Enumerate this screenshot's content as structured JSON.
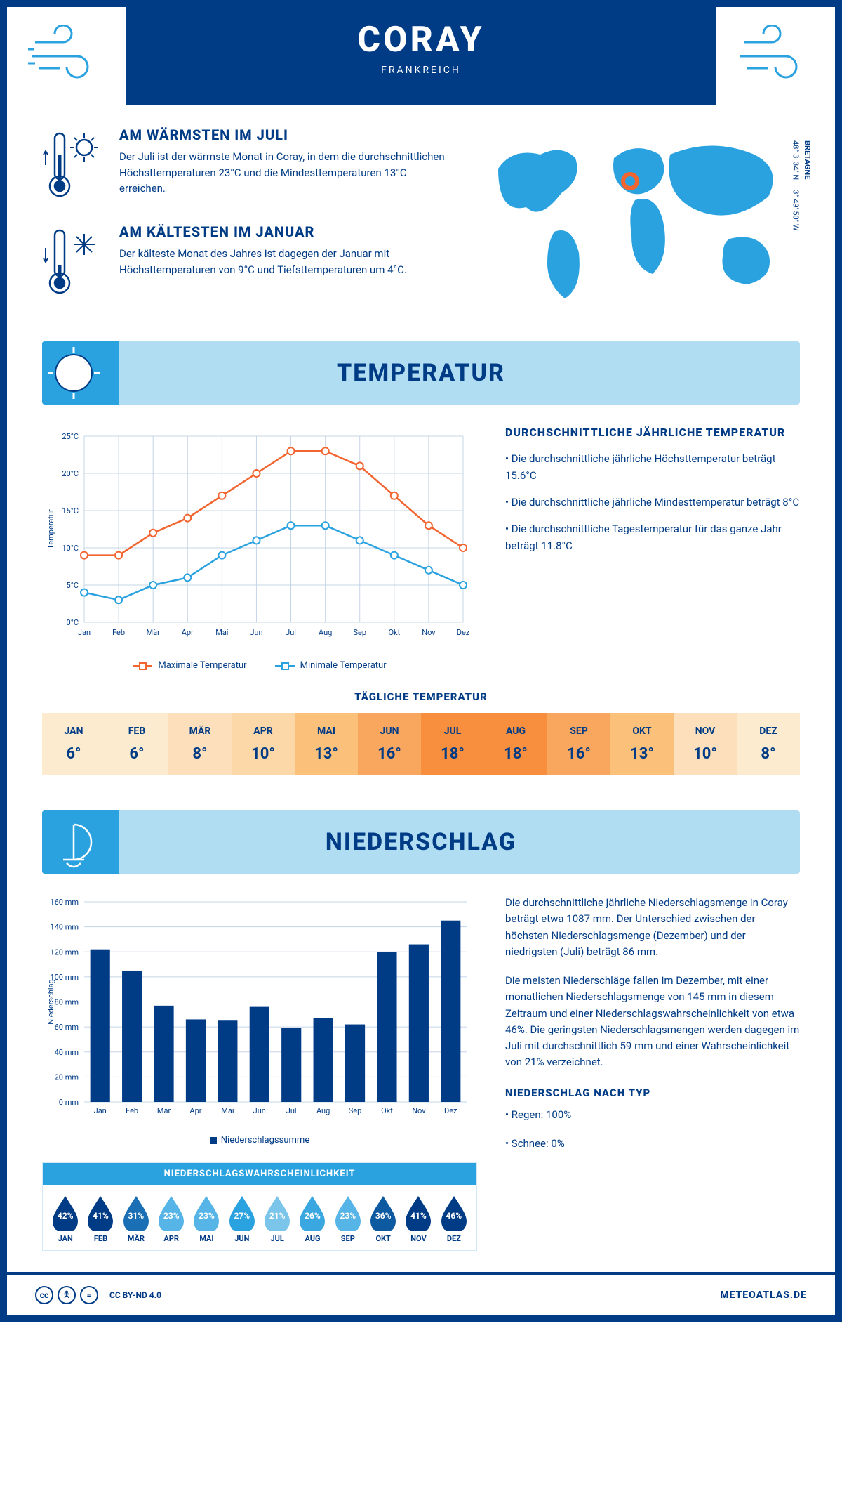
{
  "header": {
    "title": "CORAY",
    "subtitle": "FRANKREICH"
  },
  "map": {
    "region": "BRETAGNE",
    "coords": "48° 3' 34'' N — 3° 49' 50'' W",
    "marker_color": "#f26430",
    "land_color": "#2aa2e0"
  },
  "intro": {
    "warm": {
      "heading": "AM WÄRMSTEN IM JULI",
      "text": "Der Juli ist der wärmste Monat in Coray, in dem die durchschnittlichen Höchsttemperaturen 23°C und die Mindesttemperaturen 13°C erreichen."
    },
    "cold": {
      "heading": "AM KÄLTESTEN IM JANUAR",
      "text": "Der kälteste Monat des Jahres ist dagegen der Januar mit Höchsttemperaturen von 9°C und Tiefsttemperaturen um 4°C."
    }
  },
  "temp_section": {
    "title": "TEMPERATUR",
    "desc_heading": "DURCHSCHNITTLICHE JÄHRLICHE TEMPERATUR",
    "desc_1": "• Die durchschnittliche jährliche Höchsttemperatur beträgt 15.6°C",
    "desc_2": "• Die durchschnittliche jährliche Mindesttemperatur beträgt 8°C",
    "desc_3": "• Die durchschnittliche Tagestemperatur für das ganze Jahr beträgt 11.8°C",
    "legend_max": "Maximale Temperatur",
    "legend_min": "Minimale Temperatur",
    "chart": {
      "months": [
        "Jan",
        "Feb",
        "Mär",
        "Apr",
        "Mai",
        "Jun",
        "Jul",
        "Aug",
        "Sep",
        "Okt",
        "Nov",
        "Dez"
      ],
      "max_values": [
        9,
        9,
        12,
        14,
        17,
        20,
        23,
        23,
        21,
        17,
        13,
        10
      ],
      "min_values": [
        4,
        3,
        5,
        6,
        9,
        11,
        13,
        13,
        11,
        9,
        7,
        5
      ],
      "max_color": "#f26430",
      "min_color": "#2aa2e0",
      "ylim": [
        0,
        25
      ],
      "ytick_step": 5,
      "ylabel": "Temperatur",
      "grid_color": "#c5d4e6",
      "line_width": 2.5,
      "marker_size": 5
    },
    "daily_title": "TÄGLICHE TEMPERATUR",
    "daily": {
      "months": [
        "JAN",
        "FEB",
        "MÄR",
        "APR",
        "MAI",
        "JUN",
        "JUL",
        "AUG",
        "SEP",
        "OKT",
        "NOV",
        "DEZ"
      ],
      "values": [
        "6°",
        "6°",
        "8°",
        "10°",
        "13°",
        "16°",
        "18°",
        "18°",
        "16°",
        "13°",
        "10°",
        "8°"
      ],
      "bg_colors": [
        "#fdebd0",
        "#fdebd0",
        "#fde0bb",
        "#fcd7a8",
        "#fbc07a",
        "#f9a65e",
        "#f78f3f",
        "#f78f3f",
        "#f9a65e",
        "#fbc07a",
        "#fde0bb",
        "#fdebd0"
      ]
    }
  },
  "precip_section": {
    "title": "NIEDERSCHLAG",
    "para1": "Die durchschnittliche jährliche Niederschlagsmenge in Coray beträgt etwa 1087 mm. Der Unterschied zwischen der höchsten Niederschlagsmenge (Dezember) und der niedrigsten (Juli) beträgt 86 mm.",
    "para2": "Die meisten Niederschläge fallen im Dezember, mit einer monatlichen Niederschlagsmenge von 145 mm in diesem Zeitraum und einer Niederschlagswahrscheinlichkeit von etwa 46%. Die geringsten Niederschlagsmengen werden dagegen im Juli mit durchschnittlich 59 mm und einer Wahrscheinlichkeit von 21% verzeichnet.",
    "type_heading": "NIEDERSCHLAG NACH TYP",
    "type_rain": "• Regen: 100%",
    "type_snow": "• Schnee: 0%",
    "chart": {
      "months": [
        "Jan",
        "Feb",
        "Mär",
        "Apr",
        "Mai",
        "Jun",
        "Jul",
        "Aug",
        "Sep",
        "Okt",
        "Nov",
        "Dez"
      ],
      "values": [
        122,
        105,
        77,
        66,
        65,
        76,
        59,
        67,
        62,
        120,
        126,
        145
      ],
      "bar_color": "#003b85",
      "ylim": [
        0,
        160
      ],
      "ytick_step": 20,
      "ylabel": "Niederschlag",
      "legend": "Niederschlagssumme",
      "grid_color": "#c5d4e6",
      "bar_width": 0.62
    },
    "prob": {
      "heading": "NIEDERSCHLAGSWAHRSCHEINLICHKEIT",
      "months": [
        "JAN",
        "FEB",
        "MÄR",
        "APR",
        "MAI",
        "JUN",
        "JUL",
        "AUG",
        "SEP",
        "OKT",
        "NOV",
        "DEZ"
      ],
      "values": [
        "42%",
        "41%",
        "31%",
        "23%",
        "23%",
        "27%",
        "21%",
        "26%",
        "23%",
        "36%",
        "41%",
        "46%"
      ],
      "colors": [
        "#003b85",
        "#003b85",
        "#1a6fb5",
        "#57b4e6",
        "#57b4e6",
        "#2aa2e0",
        "#7cc5ea",
        "#3aa7e1",
        "#57b4e6",
        "#0d5aa0",
        "#003b85",
        "#003b85"
      ]
    }
  },
  "footer": {
    "license": "CC BY-ND 4.0",
    "site": "METEOATLAS.DE"
  },
  "palette": {
    "dark_blue": "#003b85",
    "mid_blue": "#2aa2e0",
    "light_blue": "#b1ddf3",
    "orange": "#f26430"
  }
}
